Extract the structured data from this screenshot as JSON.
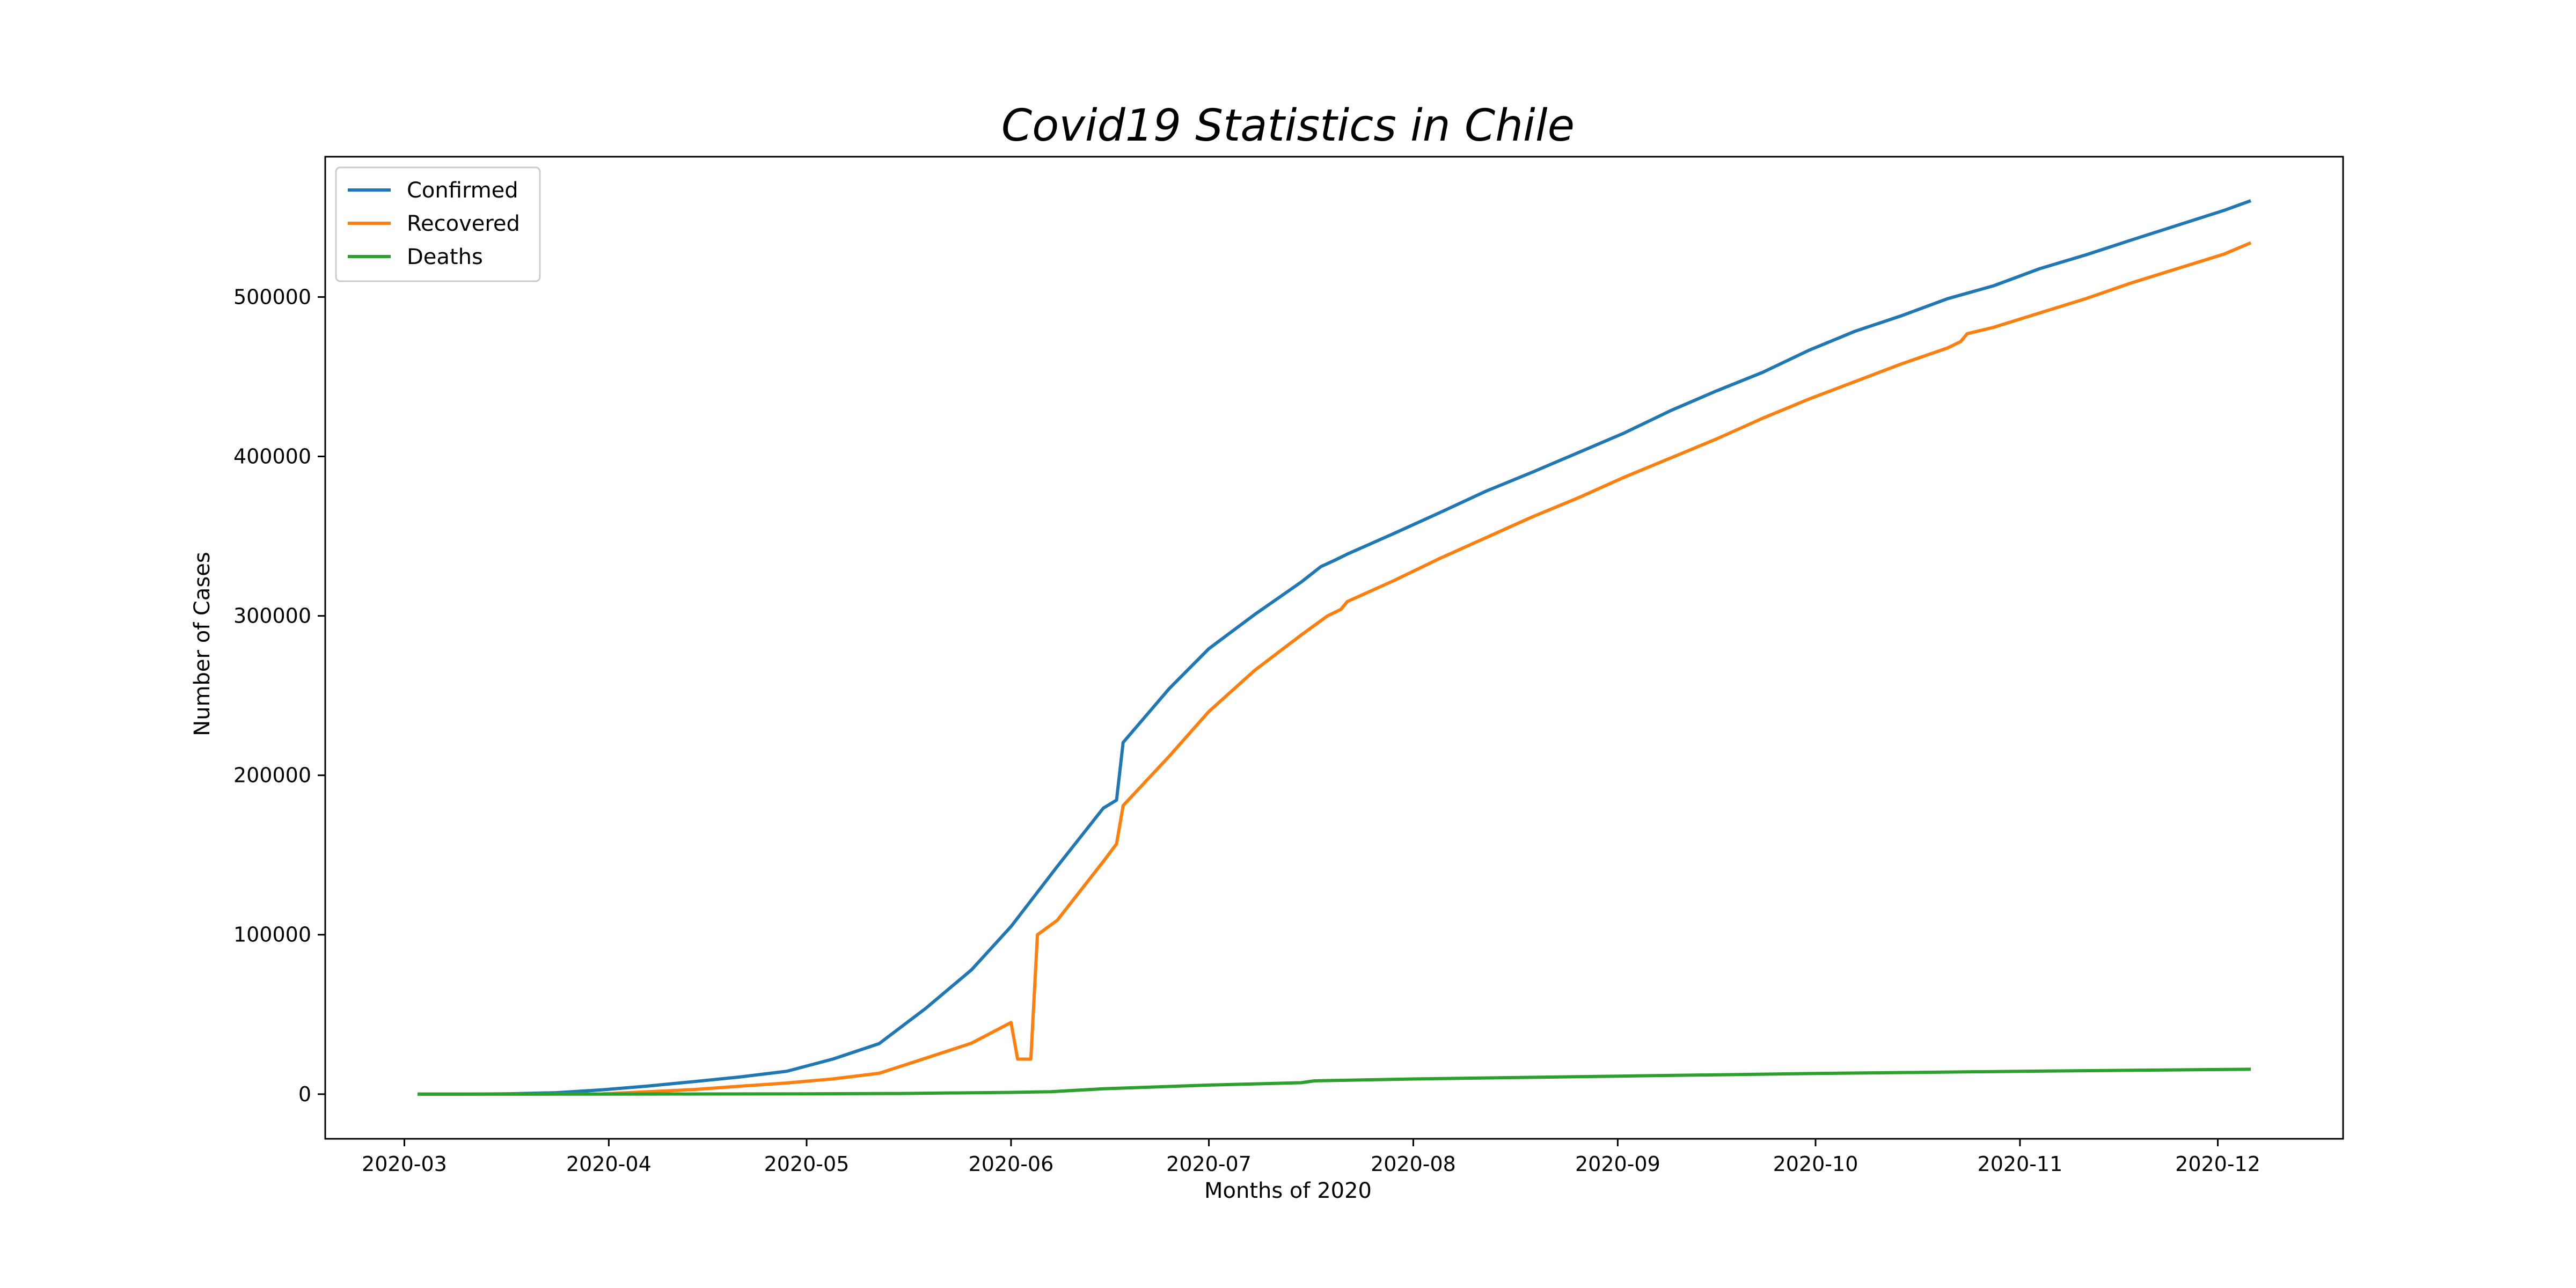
{
  "chart_data": {
    "type": "line",
    "title": "Covid19 Statistics in Chile",
    "xlabel": "Months of 2020",
    "ylabel": "Number of Cases",
    "x_ticks": [
      "2020-03",
      "2020-04",
      "2020-05",
      "2020-06",
      "2020-07",
      "2020-08",
      "2020-09",
      "2020-10",
      "2020-11",
      "2020-12"
    ],
    "y_ticks": [
      0,
      100000,
      200000,
      300000,
      400000,
      500000
    ],
    "xlim": [
      "2020-02-18",
      "2020-12-20"
    ],
    "ylim": [
      -28000,
      588000
    ],
    "grid": false,
    "legend_position": "top-left",
    "series": [
      {
        "name": "Confirmed",
        "color": "#1f77b4",
        "points": [
          [
            "2020-03-03",
            1
          ],
          [
            "2020-03-10",
            17
          ],
          [
            "2020-03-17",
            238
          ],
          [
            "2020-03-24",
            922
          ],
          [
            "2020-03-31",
            2738
          ],
          [
            "2020-04-07",
            5116
          ],
          [
            "2020-04-14",
            7917
          ],
          [
            "2020-04-21",
            10832
          ],
          [
            "2020-04-28",
            14365
          ],
          [
            "2020-05-05",
            22016
          ],
          [
            "2020-05-12",
            31721
          ],
          [
            "2020-05-19",
            53617
          ],
          [
            "2020-05-26",
            77961
          ],
          [
            "2020-06-01",
            105159
          ],
          [
            "2020-06-08",
            142759
          ],
          [
            "2020-06-15",
            179436
          ],
          [
            "2020-06-17",
            184449
          ],
          [
            "2020-06-18",
            220628
          ],
          [
            "2020-06-25",
            254416
          ],
          [
            "2020-07-01",
            279393
          ],
          [
            "2020-07-08",
            301019
          ],
          [
            "2020-07-15",
            321205
          ],
          [
            "2020-07-18",
            330930
          ],
          [
            "2020-07-20",
            334683
          ],
          [
            "2020-07-22",
            338759
          ],
          [
            "2020-07-29",
            351575
          ],
          [
            "2020-08-05",
            364723
          ],
          [
            "2020-08-12",
            378168
          ],
          [
            "2020-08-19",
            390037
          ],
          [
            "2020-08-26",
            402365
          ],
          [
            "2020-09-02",
            414739
          ],
          [
            "2020-09-09",
            428669
          ],
          [
            "2020-09-16",
            441150
          ],
          [
            "2020-09-23",
            452792
          ],
          [
            "2020-09-30",
            466590
          ],
          [
            "2020-10-07",
            478524
          ],
          [
            "2020-10-14",
            488190
          ],
          [
            "2020-10-21",
            498906
          ],
          [
            "2020-10-28",
            507050
          ],
          [
            "2020-11-04",
            517770
          ],
          [
            "2020-11-11",
            526438
          ],
          [
            "2020-11-18",
            535882
          ],
          [
            "2020-11-25",
            545134
          ],
          [
            "2020-12-02",
            554406
          ],
          [
            "2020-12-06",
            560382
          ]
        ]
      },
      {
        "name": "Recovered",
        "color": "#ff7f0e",
        "points": [
          [
            "2020-03-03",
            0
          ],
          [
            "2020-03-17",
            0
          ],
          [
            "2020-03-31",
            156
          ],
          [
            "2020-04-07",
            1571
          ],
          [
            "2020-04-14",
            2937
          ],
          [
            "2020-04-21",
            5011
          ],
          [
            "2020-04-28",
            7024
          ],
          [
            "2020-05-05",
            9572
          ],
          [
            "2020-05-12",
            13112
          ],
          [
            "2020-05-19",
            22504
          ],
          [
            "2020-05-26",
            32000
          ],
          [
            "2020-06-01",
            44946
          ],
          [
            "2020-06-02",
            22000
          ],
          [
            "2020-06-04",
            22000
          ],
          [
            "2020-06-05",
            100000
          ],
          [
            "2020-06-08",
            109000
          ],
          [
            "2020-06-15",
            146000
          ],
          [
            "2020-06-17",
            157000
          ],
          [
            "2020-06-18",
            181000
          ],
          [
            "2020-06-25",
            212000
          ],
          [
            "2020-07-01",
            240000
          ],
          [
            "2020-07-08",
            266000
          ],
          [
            "2020-07-15",
            288000
          ],
          [
            "2020-07-19",
            300000
          ],
          [
            "2020-07-20",
            302000
          ],
          [
            "2020-07-21",
            304000
          ],
          [
            "2020-07-22",
            309000
          ],
          [
            "2020-07-29",
            322000
          ],
          [
            "2020-08-05",
            336000
          ],
          [
            "2020-08-12",
            349000
          ],
          [
            "2020-08-19",
            362000
          ],
          [
            "2020-08-26",
            374000
          ],
          [
            "2020-09-02",
            387000
          ],
          [
            "2020-09-09",
            399000
          ],
          [
            "2020-09-16",
            411000
          ],
          [
            "2020-09-23",
            424000
          ],
          [
            "2020-09-30",
            436000
          ],
          [
            "2020-10-07",
            447000
          ],
          [
            "2020-10-14",
            458000
          ],
          [
            "2020-10-21",
            468000
          ],
          [
            "2020-10-23",
            472000
          ],
          [
            "2020-10-24",
            477000
          ],
          [
            "2020-10-28",
            481000
          ],
          [
            "2020-11-04",
            490000
          ],
          [
            "2020-11-11",
            499000
          ],
          [
            "2020-11-18",
            509000
          ],
          [
            "2020-11-25",
            518000
          ],
          [
            "2020-12-02",
            527000
          ],
          [
            "2020-12-06",
            534000
          ]
        ]
      },
      {
        "name": "Deaths",
        "color": "#2ca02c",
        "points": [
          [
            "2020-03-03",
            0
          ],
          [
            "2020-03-17",
            0
          ],
          [
            "2020-04-01",
            16
          ],
          [
            "2020-04-15",
            94
          ],
          [
            "2020-05-01",
            216
          ],
          [
            "2020-05-15",
            421
          ],
          [
            "2020-06-01",
            1113
          ],
          [
            "2020-06-07",
            1541
          ],
          [
            "2020-06-15",
            3362
          ],
          [
            "2020-07-01",
            5688
          ],
          [
            "2020-07-15",
            7186
          ],
          [
            "2020-07-17",
            8347
          ],
          [
            "2020-08-01",
            9533
          ],
          [
            "2020-09-01",
            11321
          ],
          [
            "2020-10-01",
            12979
          ],
          [
            "2020-11-01",
            14347
          ],
          [
            "2020-12-06",
            15663
          ]
        ]
      }
    ]
  }
}
